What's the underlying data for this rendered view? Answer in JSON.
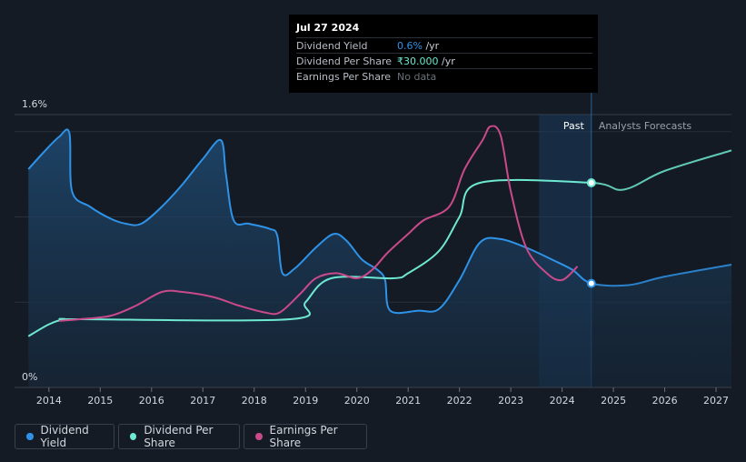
{
  "tooltip": {
    "date": "Jul 27 2024",
    "rows": [
      {
        "label": "Dividend Yield",
        "value": "0.6%",
        "unit": "/yr",
        "color": "#2e93e8"
      },
      {
        "label": "Dividend Per Share",
        "value": "₹30.000",
        "unit": "/yr",
        "color": "#6ee8d0"
      },
      {
        "label": "Earnings Per Share",
        "value": "No data",
        "unit": "",
        "color": "#6b7078"
      }
    ]
  },
  "legend": [
    {
      "label": "Dividend Yield",
      "color": "#2e93e8"
    },
    {
      "label": "Dividend Per Share",
      "color": "#6ee8d0"
    },
    {
      "label": "Earnings Per Share",
      "color": "#c94a8a"
    }
  ],
  "chart_data": {
    "type": "line",
    "y_top_label": "1.6%",
    "y_bottom_label": "0%",
    "ylim": [
      0,
      1.6
    ],
    "xlim": [
      2013.6,
      2027.3
    ],
    "x_ticks": [
      "2014",
      "2015",
      "2016",
      "2017",
      "2018",
      "2019",
      "2020",
      "2021",
      "2022",
      "2023",
      "2024",
      "2025",
      "2026",
      "2027"
    ],
    "past_label": "Past",
    "forecast_label": "Analysts Forecasts",
    "past_band": [
      2023.55,
      2024.57
    ],
    "grid": true,
    "series": [
      {
        "name": "Dividend Yield",
        "color": "#2e93e8",
        "filled": true,
        "points": [
          [
            2013.6,
            1.28
          ],
          [
            2013.9,
            1.38
          ],
          [
            2014.2,
            1.47
          ],
          [
            2014.4,
            1.49
          ],
          [
            2014.45,
            1.15
          ],
          [
            2014.8,
            1.06
          ],
          [
            2015.2,
            0.99
          ],
          [
            2015.5,
            0.96
          ],
          [
            2015.8,
            0.96
          ],
          [
            2016.2,
            1.06
          ],
          [
            2016.6,
            1.19
          ],
          [
            2017.0,
            1.34
          ],
          [
            2017.35,
            1.45
          ],
          [
            2017.45,
            1.25
          ],
          [
            2017.6,
            0.98
          ],
          [
            2017.9,
            0.96
          ],
          [
            2018.3,
            0.93
          ],
          [
            2018.45,
            0.89
          ],
          [
            2018.55,
            0.67
          ],
          [
            2018.8,
            0.7
          ],
          [
            2019.2,
            0.82
          ],
          [
            2019.55,
            0.9
          ],
          [
            2019.8,
            0.86
          ],
          [
            2020.1,
            0.75
          ],
          [
            2020.4,
            0.69
          ],
          [
            2020.55,
            0.63
          ],
          [
            2020.65,
            0.45
          ],
          [
            2021.2,
            0.45
          ],
          [
            2021.6,
            0.46
          ],
          [
            2022.0,
            0.63
          ],
          [
            2022.4,
            0.85
          ],
          [
            2022.8,
            0.87
          ],
          [
            2023.3,
            0.82
          ],
          [
            2023.8,
            0.75
          ],
          [
            2024.2,
            0.69
          ],
          [
            2024.57,
            0.61
          ],
          [
            2025.3,
            0.6
          ],
          [
            2026.0,
            0.65
          ],
          [
            2027.3,
            0.72
          ]
        ]
      },
      {
        "name": "Dividend Per Share",
        "color": "#6ee8d0",
        "filled": true,
        "points": [
          [
            2013.6,
            0.3
          ],
          [
            2014.0,
            0.37
          ],
          [
            2014.3,
            0.4
          ],
          [
            2014.6,
            0.4
          ],
          [
            2018.7,
            0.4
          ],
          [
            2019.0,
            0.5
          ],
          [
            2019.5,
            0.64
          ],
          [
            2020.7,
            0.64
          ],
          [
            2021.0,
            0.67
          ],
          [
            2021.6,
            0.8
          ],
          [
            2022.0,
            1.0
          ],
          [
            2022.4,
            1.2
          ],
          [
            2024.57,
            1.2
          ],
          [
            2025.2,
            1.16
          ],
          [
            2026.0,
            1.27
          ],
          [
            2027.3,
            1.39
          ]
        ]
      },
      {
        "name": "Earnings Per Share",
        "color": "#c94a8a",
        "filled": false,
        "points": [
          [
            2014.2,
            0.39
          ],
          [
            2014.6,
            0.4
          ],
          [
            2015.2,
            0.42
          ],
          [
            2015.7,
            0.48
          ],
          [
            2016.2,
            0.56
          ],
          [
            2016.6,
            0.56
          ],
          [
            2017.2,
            0.53
          ],
          [
            2017.7,
            0.48
          ],
          [
            2018.2,
            0.44
          ],
          [
            2018.5,
            0.44
          ],
          [
            2018.9,
            0.55
          ],
          [
            2019.2,
            0.64
          ],
          [
            2019.6,
            0.67
          ],
          [
            2020.0,
            0.64
          ],
          [
            2020.3,
            0.69
          ],
          [
            2020.6,
            0.79
          ],
          [
            2021.0,
            0.9
          ],
          [
            2021.3,
            0.98
          ],
          [
            2021.8,
            1.06
          ],
          [
            2022.1,
            1.28
          ],
          [
            2022.45,
            1.45
          ],
          [
            2022.6,
            1.53
          ],
          [
            2022.8,
            1.48
          ],
          [
            2023.0,
            1.15
          ],
          [
            2023.3,
            0.82
          ],
          [
            2023.7,
            0.67
          ],
          [
            2024.0,
            0.63
          ],
          [
            2024.3,
            0.71
          ]
        ]
      }
    ],
    "highlight_points": [
      {
        "series": "Dividend Yield",
        "x": 2024.57,
        "y": 0.61
      },
      {
        "series": "Dividend Per Share",
        "x": 2024.57,
        "y": 1.2
      }
    ]
  }
}
